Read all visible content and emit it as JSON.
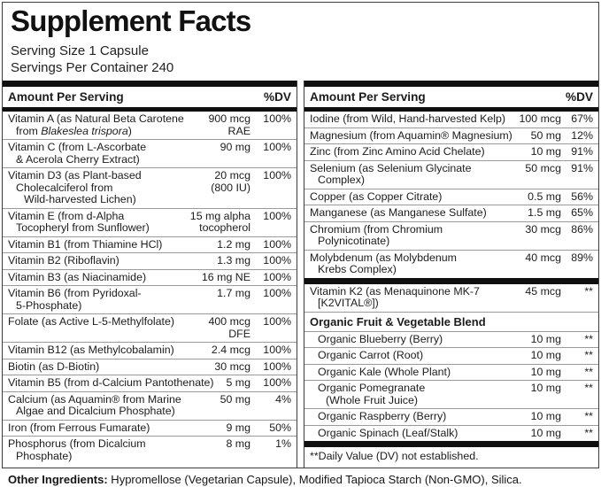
{
  "panel": {
    "title": "Supplement Facts",
    "serving_size": "Serving Size 1 Capsule",
    "servings_per_container": "Servings Per Container 240"
  },
  "colors": {
    "text": "#1c1c1c",
    "row_separator": "#9b9b9b",
    "thick_bar": "#0f0f0f",
    "frame_border": "#3c3c3c",
    "background": "#ffffff"
  },
  "columns": [
    {
      "header": {
        "amount_label": "Amount Per Serving",
        "dv_label": "%DV"
      },
      "rows": [
        {
          "type": "item",
          "name_lines": [
            [
              {
                "t": "Vitamin A (as Natural Beta Carotene"
              }
            ],
            [
              {
                "t": "from "
              },
              {
                "t": "Blakeslea trispora",
                "i": true
              },
              {
                "t": ")"
              }
            ]
          ],
          "amount_lines": [
            "900 mcg",
            "RAE"
          ],
          "dv": "100%"
        },
        {
          "type": "item",
          "name_lines": [
            [
              {
                "t": "Vitamin C (from L-Ascorbate"
              }
            ],
            [
              {
                "t": "& Acerola Cherry Extract)"
              }
            ]
          ],
          "amount_lines": [
            "90 mg"
          ],
          "dv": "100%"
        },
        {
          "type": "item",
          "name_lines": [
            [
              {
                "t": "Vitamin D3 (as Plant-based"
              }
            ],
            [
              {
                "t": "Cholecalciferol from"
              }
            ],
            [
              {
                "t": "Wild-harvested Lichen)"
              }
            ]
          ],
          "amount_lines": [
            "20 mcg",
            "(800 IU)"
          ],
          "dv": "100%"
        },
        {
          "type": "item",
          "name_lines": [
            [
              {
                "t": "Vitamin E (from d-Alpha"
              }
            ],
            [
              {
                "t": "Tocopheryl from Sunflower)"
              }
            ]
          ],
          "amount_lines": [
            "15 mg alpha",
            "tocopherol"
          ],
          "dv": "100%"
        },
        {
          "type": "item",
          "name_lines": [
            [
              {
                "t": "Vitamin B1 (from Thiamine HCl)"
              }
            ]
          ],
          "amount_lines": [
            "1.2 mg"
          ],
          "dv": "100%"
        },
        {
          "type": "item",
          "name_lines": [
            [
              {
                "t": "Vitamin B2 (Riboflavin)"
              }
            ]
          ],
          "amount_lines": [
            "1.3 mg"
          ],
          "dv": "100%"
        },
        {
          "type": "item",
          "name_lines": [
            [
              {
                "t": "Vitamin B3 (as Niacinamide)"
              }
            ]
          ],
          "amount_lines": [
            "16 mg NE"
          ],
          "dv": "100%"
        },
        {
          "type": "item",
          "name_lines": [
            [
              {
                "t": "Vitamin B6 (from Pyridoxal-"
              }
            ],
            [
              {
                "t": "5-Phosphate)"
              }
            ]
          ],
          "amount_lines": [
            "1.7 mg"
          ],
          "dv": "100%"
        },
        {
          "type": "item",
          "name_lines": [
            [
              {
                "t": "Folate (as Active L-5-Methylfolate)"
              }
            ]
          ],
          "amount_lines": [
            "400 mcg",
            "DFE"
          ],
          "dv": "100%"
        },
        {
          "type": "item",
          "name_lines": [
            [
              {
                "t": "Vitamin B12 (as Methylcobalamin)"
              }
            ]
          ],
          "amount_lines": [
            "2.4 mcg"
          ],
          "dv": "100%"
        },
        {
          "type": "item",
          "name_lines": [
            [
              {
                "t": "Biotin (as D-Biotin)"
              }
            ]
          ],
          "amount_lines": [
            "30 mcg"
          ],
          "dv": "100%"
        },
        {
          "type": "item",
          "name_lines": [
            [
              {
                "t": "Vitamin B5 (from d-Calcium Pantothenate)"
              }
            ]
          ],
          "amount_lines": [
            "5 mg"
          ],
          "dv": "100%"
        },
        {
          "type": "item",
          "name_lines": [
            [
              {
                "t": "Calcium (as Aquamin® from Marine"
              }
            ],
            [
              {
                "t": "Algae and Dicalcium Phosphate)"
              }
            ]
          ],
          "amount_lines": [
            "50 mg"
          ],
          "dv": "4%"
        },
        {
          "type": "item",
          "name_lines": [
            [
              {
                "t": "Iron (from Ferrous Fumarate)"
              }
            ]
          ],
          "amount_lines": [
            "9 mg"
          ],
          "dv": "50%"
        },
        {
          "type": "item",
          "name_lines": [
            [
              {
                "t": "Phosphorus (from Dicalcium"
              }
            ],
            [
              {
                "t": "Phosphate)"
              }
            ]
          ],
          "amount_lines": [
            "8 mg"
          ],
          "dv": "1%"
        }
      ]
    },
    {
      "header": {
        "amount_label": "Amount Per Serving",
        "dv_label": "%DV"
      },
      "rows": [
        {
          "type": "item",
          "name_lines": [
            [
              {
                "t": "Iodine (from Wild, Hand-harvested Kelp)"
              }
            ]
          ],
          "amount_lines": [
            "100 mcg"
          ],
          "dv": "67%"
        },
        {
          "type": "item",
          "name_lines": [
            [
              {
                "t": "Magnesium (from Aquamin® Magnesium)"
              }
            ]
          ],
          "amount_lines": [
            "50 mg"
          ],
          "dv": "12%"
        },
        {
          "type": "item",
          "name_lines": [
            [
              {
                "t": "Zinc (from Zinc Amino Acid Chelate)"
              }
            ]
          ],
          "amount_lines": [
            "10 mg"
          ],
          "dv": "91%"
        },
        {
          "type": "item",
          "name_lines": [
            [
              {
                "t": "Selenium (as Selenium Glycinate"
              }
            ],
            [
              {
                "t": "Complex)"
              }
            ]
          ],
          "amount_lines": [
            "50 mcg"
          ],
          "dv": "91%"
        },
        {
          "type": "item",
          "name_lines": [
            [
              {
                "t": "Copper (as Copper Citrate)"
              }
            ]
          ],
          "amount_lines": [
            "0.5 mg"
          ],
          "dv": "56%"
        },
        {
          "type": "item",
          "name_lines": [
            [
              {
                "t": "Manganese (as Manganese Sulfate)"
              }
            ]
          ],
          "amount_lines": [
            "1.5 mg"
          ],
          "dv": "65%"
        },
        {
          "type": "item",
          "name_lines": [
            [
              {
                "t": "Chromium (from Chromium"
              }
            ],
            [
              {
                "t": "Polynicotinate)"
              }
            ]
          ],
          "amount_lines": [
            "30 mcg"
          ],
          "dv": "86%"
        },
        {
          "type": "item",
          "name_lines": [
            [
              {
                "t": "Molybdenum (as Molybdenum"
              }
            ],
            [
              {
                "t": "Krebs Complex)"
              }
            ]
          ],
          "amount_lines": [
            "40 mcg"
          ],
          "dv": "89%"
        },
        {
          "type": "divider"
        },
        {
          "type": "item",
          "name_lines": [
            [
              {
                "t": "Vitamin K2 (as Menaquinone MK-7"
              }
            ],
            [
              {
                "t": "[K2VITAL®])"
              }
            ]
          ],
          "amount_lines": [
            "45 mcg"
          ],
          "dv": "**"
        },
        {
          "type": "section",
          "label": "Organic Fruit & Vegetable Blend"
        },
        {
          "type": "item",
          "indent": true,
          "name_lines": [
            [
              {
                "t": "Organic Blueberry (Berry)"
              }
            ]
          ],
          "amount_lines": [
            "10 mg"
          ],
          "dv": "**"
        },
        {
          "type": "item",
          "indent": true,
          "name_lines": [
            [
              {
                "t": "Organic Carrot (Root)"
              }
            ]
          ],
          "amount_lines": [
            "10 mg"
          ],
          "dv": "**"
        },
        {
          "type": "item",
          "indent": true,
          "name_lines": [
            [
              {
                "t": "Organic Kale (Whole Plant)"
              }
            ]
          ],
          "amount_lines": [
            "10 mg"
          ],
          "dv": "**"
        },
        {
          "type": "item",
          "indent": true,
          "name_lines": [
            [
              {
                "t": "Organic Pomegranate"
              }
            ],
            [
              {
                "t": "(Whole Fruit Juice)"
              }
            ]
          ],
          "amount_lines": [
            "10 mg"
          ],
          "dv": "**"
        },
        {
          "type": "item",
          "indent": true,
          "name_lines": [
            [
              {
                "t": "Organic Raspberry (Berry)"
              }
            ]
          ],
          "amount_lines": [
            "10 mg"
          ],
          "dv": "**"
        },
        {
          "type": "item",
          "indent": true,
          "name_lines": [
            [
              {
                "t": "Organic Spinach (Leaf/Stalk)"
              }
            ]
          ],
          "amount_lines": [
            "10 mg"
          ],
          "dv": "**"
        },
        {
          "type": "divider"
        },
        {
          "type": "footnote",
          "text": "**Daily Value (DV) not established."
        }
      ]
    }
  ],
  "footer": {
    "other_ingredients_label": "Other Ingredients:",
    "other_ingredients_text": " Hypromellose (Vegetarian Capsule), Modified Tapioca Starch (Non-GMO), Silica."
  }
}
